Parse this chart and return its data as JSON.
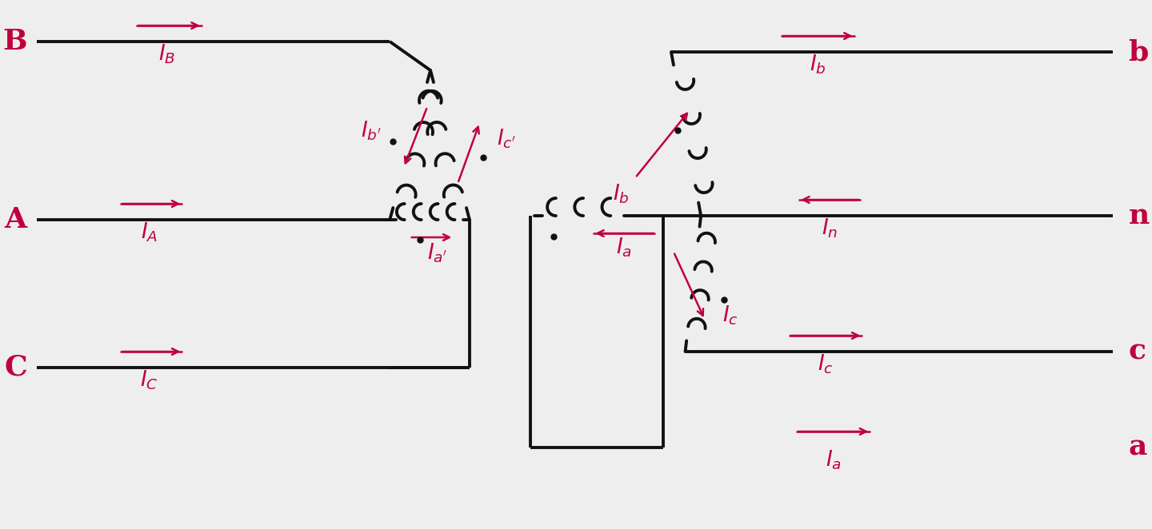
{
  "bg_color": "#eeeeee",
  "line_color": "#111111",
  "label_color": "#c0003c",
  "arrow_color": "#c0003c",
  "lw": 2.8,
  "figsize": [
    14.4,
    6.62
  ],
  "dpi": 100,
  "labels_left": [
    "B",
    "A",
    "C"
  ],
  "labels_right": [
    "b",
    "n",
    "c",
    "a"
  ],
  "current_labels_left": [
    "$I_B$",
    "$I_A$",
    "$I_C$"
  ],
  "current_labels_delta": [
    "$I_{b'}$",
    "$I_{c'}$",
    "$I_{a'}$"
  ],
  "current_labels_right": [
    "$I_b$",
    "$I_b$",
    "$I_a$",
    "$I_c$",
    "$I_c$",
    "$I_n$",
    "$I_a$"
  ]
}
